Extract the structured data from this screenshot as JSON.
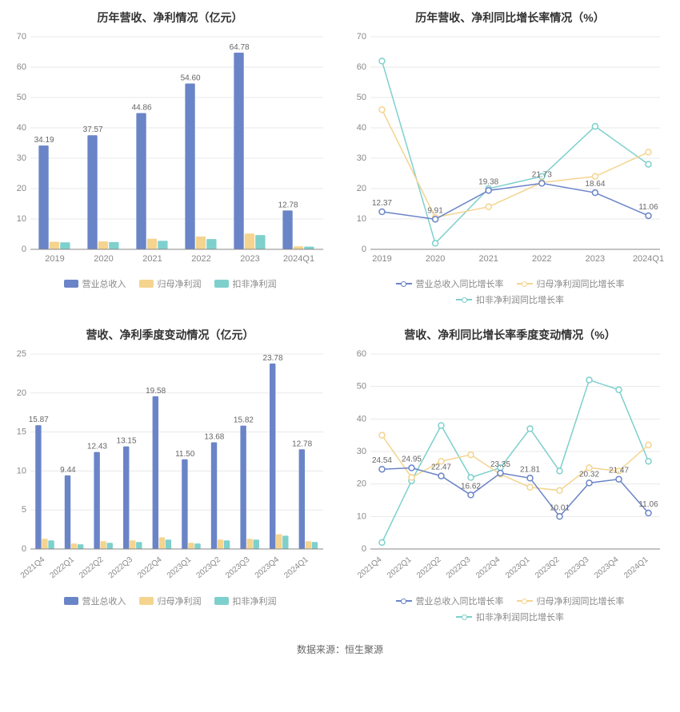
{
  "colors": {
    "bar1": "#6a84c8",
    "bar2": "#f4d48f",
    "bar3": "#7ed0cd",
    "line1": "#6a84c8",
    "line2": "#f4d48f",
    "line3": "#7ed0cd",
    "axis": "#888888",
    "grid": "#e8e8e8",
    "title": "#333333",
    "label": "#888888",
    "valueLabel": "#666666"
  },
  "typography": {
    "title_fontsize": 14,
    "title_weight": 600,
    "axis_fontsize": 11,
    "legend_fontsize": 11,
    "value_label_fontsize": 10
  },
  "source_note": "数据来源：恒生聚源",
  "chart1": {
    "type": "bar",
    "title": "历年营收、净利情况（亿元）",
    "categories": [
      "2019",
      "2020",
      "2021",
      "2022",
      "2023",
      "2024Q1"
    ],
    "series": [
      {
        "name": "营业总收入",
        "values": [
          34.19,
          37.57,
          44.86,
          54.6,
          64.78,
          12.78
        ],
        "color": "#6a84c8"
      },
      {
        "name": "归母净利润",
        "values": [
          2.5,
          2.6,
          3.5,
          4.2,
          5.2,
          1.0
        ],
        "color": "#f4d48f"
      },
      {
        "name": "扣非净利润",
        "values": [
          2.3,
          2.4,
          2.8,
          3.4,
          4.7,
          0.9
        ],
        "color": "#7ed0cd"
      }
    ],
    "value_labels": [
      "34.19",
      "37.57",
      "44.86",
      "54.60",
      "64.78",
      "12.78"
    ],
    "ylim": [
      0,
      70
    ],
    "ytick_step": 10,
    "legend": [
      "营业总收入",
      "归母净利润",
      "扣非净利润"
    ]
  },
  "chart2": {
    "type": "line",
    "title": "历年营收、净利同比增长率情况（%）",
    "categories": [
      "2019",
      "2020",
      "2021",
      "2022",
      "2023",
      "2024Q1"
    ],
    "series": [
      {
        "name": "营业总收入同比增长率",
        "values": [
          12.37,
          9.91,
          19.38,
          21.73,
          18.64,
          11.06
        ],
        "color": "#6a84c8"
      },
      {
        "name": "归母净利润同比增长率",
        "values": [
          46,
          10.5,
          14,
          22,
          24,
          32
        ],
        "color": "#f4d48f"
      },
      {
        "name": "扣非净利润同比增长率",
        "values": [
          62,
          2,
          20,
          24,
          40.5,
          28
        ],
        "color": "#7ed0cd"
      }
    ],
    "value_labels": [
      "12.37",
      "9.91",
      "19.38",
      "21.73",
      "18.64",
      "11.06"
    ],
    "ylim": [
      0,
      70
    ],
    "ytick_step": 10,
    "legend": [
      "营业总收入同比增长率",
      "归母净利润同比增长率",
      "扣非净利润同比增长率"
    ]
  },
  "chart3": {
    "type": "bar",
    "title": "营收、净利季度变动情况（亿元）",
    "categories": [
      "2021Q4",
      "2022Q1",
      "2022Q2",
      "2022Q3",
      "2022Q4",
      "2023Q1",
      "2023Q2",
      "2023Q3",
      "2023Q4",
      "2024Q1"
    ],
    "series": [
      {
        "name": "营业总收入",
        "values": [
          15.87,
          9.44,
          12.43,
          13.15,
          19.58,
          11.5,
          13.68,
          15.82,
          23.78,
          12.78
        ],
        "color": "#6a84c8"
      },
      {
        "name": "归母净利润",
        "values": [
          1.3,
          0.7,
          1.0,
          1.1,
          1.5,
          0.8,
          1.2,
          1.3,
          1.9,
          1.0
        ],
        "color": "#f4d48f"
      },
      {
        "name": "扣非净利润",
        "values": [
          1.1,
          0.6,
          0.8,
          0.9,
          1.2,
          0.7,
          1.1,
          1.2,
          1.7,
          0.9
        ],
        "color": "#7ed0cd"
      }
    ],
    "value_labels": [
      "15.87",
      "9.44",
      "12.43",
      "13.15",
      "19.58",
      "11.50",
      "13.68",
      "15.82",
      "23.78",
      "12.78"
    ],
    "ylim": [
      0,
      25
    ],
    "ytick_step": 5,
    "legend": [
      "营业总收入",
      "归母净利润",
      "扣非净利润"
    ],
    "x_rotate": true
  },
  "chart4": {
    "type": "line",
    "title": "营收、净利同比增长率季度变动情况（%）",
    "categories": [
      "2021Q4",
      "2022Q1",
      "2022Q2",
      "2022Q3",
      "2022Q4",
      "2023Q1",
      "2023Q2",
      "2023Q3",
      "2023Q4",
      "2024Q1"
    ],
    "series": [
      {
        "name": "营业总收入同比增长率",
        "values": [
          24.54,
          24.95,
          22.47,
          16.62,
          23.35,
          21.81,
          10.01,
          20.32,
          21.47,
          11.06
        ],
        "color": "#6a84c8"
      },
      {
        "name": "归母净利润同比增长率",
        "values": [
          35,
          22,
          27,
          29,
          23,
          19,
          18,
          25,
          24,
          32
        ],
        "color": "#f4d48f"
      },
      {
        "name": "扣非净利润同比增长率",
        "values": [
          2,
          21,
          38,
          22,
          25,
          37,
          24,
          52,
          49,
          27
        ],
        "color": "#7ed0cd"
      }
    ],
    "value_labels": [
      "24.54",
      "24.95",
      "22.47",
      "16.62",
      "23.35",
      "21.81",
      "10.01",
      "20.32",
      "21.47",
      "11.06"
    ],
    "ylim": [
      0,
      60
    ],
    "ytick_step": 10,
    "legend": [
      "营业总收入同比增长率",
      "归母净利润同比增长率",
      "扣非净利润同比增长率"
    ],
    "x_rotate": true
  }
}
